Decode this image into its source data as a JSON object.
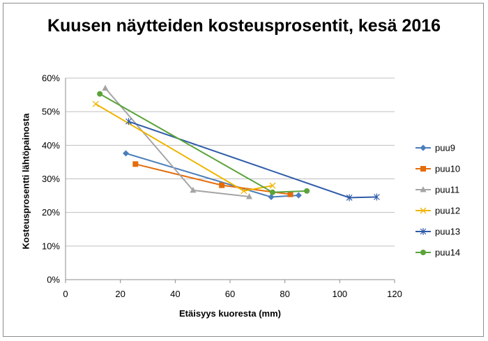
{
  "chart_data": {
    "type": "line",
    "title": "Kuusen näytteiden kosteusprosentit, kesä 2016",
    "xlabel": "Etäisyys kuoresta (mm)",
    "ylabel": "Kosteusprosentti lähtöpainosta",
    "xlim": [
      0,
      120
    ],
    "ylim": [
      0,
      60
    ],
    "x_ticks": [
      "0",
      "20",
      "40",
      "60",
      "80",
      "100",
      "120"
    ],
    "y_ticks": [
      "0%",
      "10%",
      "20%",
      "30%",
      "40%",
      "50%",
      "60%"
    ],
    "grid": "horizontal",
    "legend_position": "right",
    "series": [
      {
        "name": "puu9",
        "color": "#4a7ebb",
        "marker": "diamond",
        "x": [
          22,
          75,
          85
        ],
        "y": [
          37.6,
          24.6,
          25.1
        ]
      },
      {
        "name": "puu10",
        "color": "#e46c0a",
        "marker": "square",
        "x": [
          25.5,
          57,
          82
        ],
        "y": [
          34.4,
          28.1,
          25.4
        ]
      },
      {
        "name": "puu11",
        "color": "#a5a5a5",
        "marker": "triangle",
        "x": [
          14.5,
          46.5,
          67
        ],
        "y": [
          57,
          26.6,
          24.7
        ]
      },
      {
        "name": "puu12",
        "color": "#f0b400",
        "marker": "x",
        "x": [
          11,
          65,
          75.5
        ],
        "y": [
          52.3,
          26.4,
          28.0
        ]
      },
      {
        "name": "puu13",
        "color": "#2e5ba8",
        "marker": "star",
        "x": [
          23,
          103.5,
          113.5
        ],
        "y": [
          47.1,
          24.4,
          24.6
        ]
      },
      {
        "name": "puu14",
        "color": "#5aa33a",
        "marker": "circle",
        "x": [
          12.5,
          75.5,
          88
        ],
        "y": [
          55.3,
          26.0,
          26.4
        ]
      }
    ]
  }
}
